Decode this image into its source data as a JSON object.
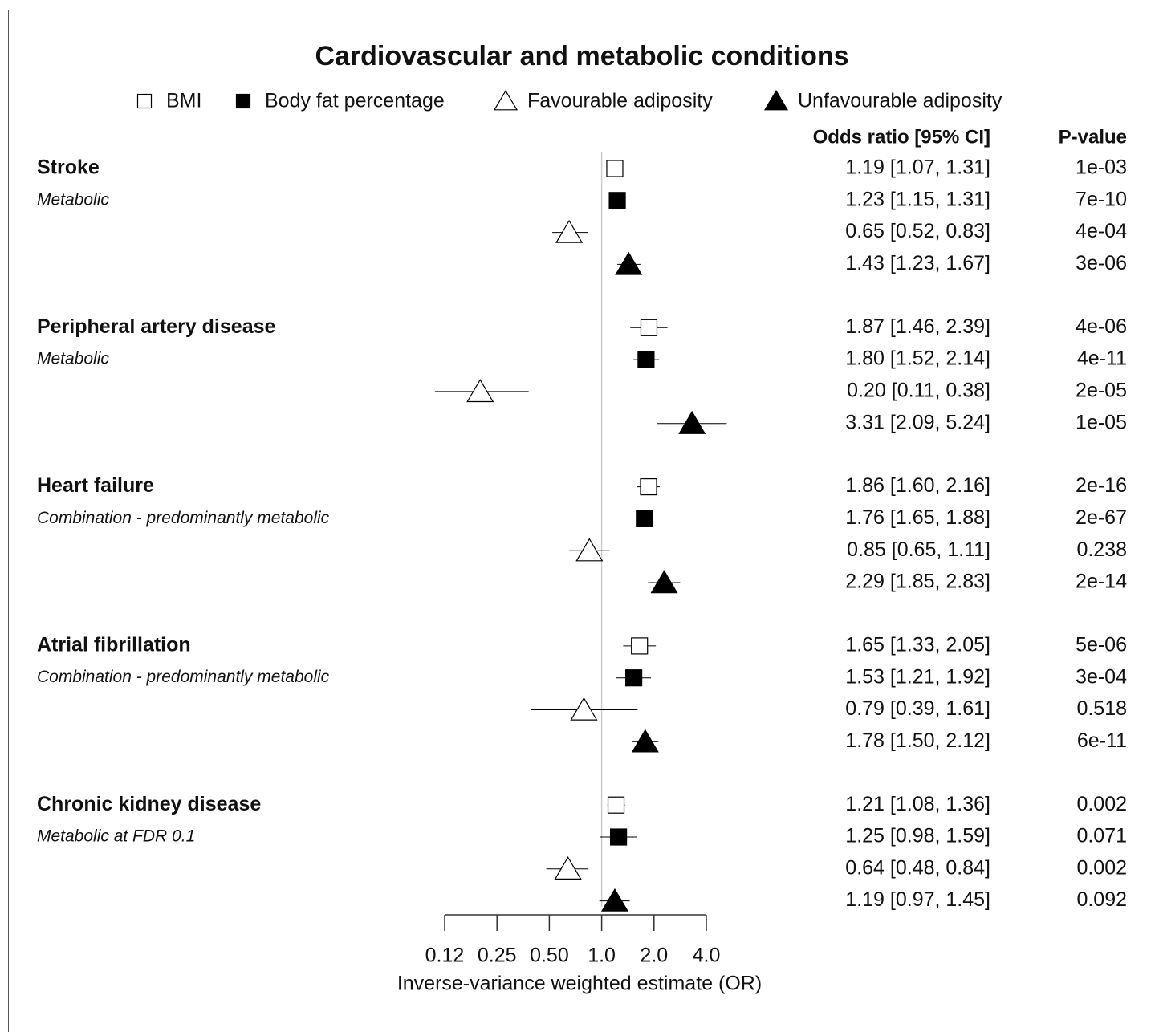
{
  "chart_data": {
    "type": "forest",
    "title": "Cardiovascular and metabolic conditions",
    "series": [
      {
        "name": "BMI",
        "marker": "square",
        "filled": false
      },
      {
        "name": "Body fat percentage",
        "marker": "square",
        "filled": true
      },
      {
        "name": "Favourable adiposity",
        "marker": "triangle",
        "filled": false
      },
      {
        "name": "Unfavourable adiposity",
        "marker": "triangle",
        "filled": true
      }
    ],
    "columns": [
      "Odds ratio [95% CI]",
      "P-value"
    ],
    "groups": [
      {
        "name": "Stroke",
        "subtitle": "Metabolic",
        "values": [
          1.19,
          1.23,
          0.65,
          1.43
        ],
        "lower": [
          1.07,
          1.15,
          0.52,
          1.23
        ],
        "upper": [
          1.31,
          1.31,
          0.83,
          1.67
        ],
        "value_labels": [
          "1.19 [1.07, 1.31]",
          "1.23 [1.15, 1.31]",
          "0.65 [0.52, 0.83]",
          "1.43 [1.23, 1.67]"
        ],
        "p_values": [
          "1e-03",
          "7e-10",
          "4e-04",
          "3e-06"
        ]
      },
      {
        "name": "Peripheral artery disease",
        "subtitle": "Metabolic",
        "values": [
          1.87,
          1.8,
          0.2,
          3.31
        ],
        "lower": [
          1.46,
          1.52,
          0.11,
          2.09
        ],
        "upper": [
          2.39,
          2.14,
          0.38,
          5.24
        ],
        "value_labels": [
          "1.87 [1.46, 2.39]",
          "1.80 [1.52, 2.14]",
          "0.20 [0.11, 0.38]",
          "3.31 [2.09, 5.24]"
        ],
        "p_values": [
          "4e-06",
          "4e-11",
          "2e-05",
          "1e-05"
        ]
      },
      {
        "name": "Heart failure",
        "subtitle": "Combination - predominantly metabolic",
        "values": [
          1.86,
          1.76,
          0.85,
          2.29
        ],
        "lower": [
          1.6,
          1.65,
          0.65,
          1.85
        ],
        "upper": [
          2.16,
          1.88,
          1.11,
          2.83
        ],
        "value_labels": [
          "1.86 [1.60, 2.16]",
          "1.76 [1.65, 1.88]",
          "0.85 [0.65, 1.11]",
          "2.29 [1.85, 2.83]"
        ],
        "p_values": [
          "2e-16",
          "2e-67",
          "0.238",
          "2e-14"
        ]
      },
      {
        "name": "Atrial fibrillation",
        "subtitle": "Combination - predominantly metabolic",
        "values": [
          1.65,
          1.53,
          0.79,
          1.78
        ],
        "lower": [
          1.33,
          1.21,
          0.39,
          1.5
        ],
        "upper": [
          2.05,
          1.92,
          1.61,
          2.12
        ],
        "value_labels": [
          "1.65 [1.33, 2.05]",
          "1.53 [1.21, 1.92]",
          "0.79 [0.39, 1.61]",
          "1.78 [1.50, 2.12]"
        ],
        "p_values": [
          "5e-06",
          "3e-04",
          "0.518",
          "6e-11"
        ]
      },
      {
        "name": "Chronic kidney disease",
        "subtitle": "Metabolic at FDR 0.1",
        "values": [
          1.21,
          1.25,
          0.64,
          1.19
        ],
        "lower": [
          1.08,
          0.98,
          0.48,
          0.97
        ],
        "upper": [
          1.36,
          1.59,
          0.84,
          1.45
        ],
        "value_labels": [
          "1.21 [1.08, 1.36]",
          "1.25 [0.98, 1.59]",
          "0.64 [0.48, 0.84]",
          "1.19 [0.97, 1.45]"
        ],
        "p_values": [
          "0.002",
          "0.071",
          "0.002",
          "0.092"
        ]
      }
    ],
    "x_label": "Inverse-variance weighted estimate (OR)",
    "x_log_scale": true,
    "xlim": [
      0.125,
      4
    ],
    "xticks": [
      {
        "value": 0.125,
        "label": "0.12"
      },
      0.25,
      {
        "value": 0.5,
        "label": "0.50"
      },
      {
        "value": 1,
        "label": "1.0"
      },
      {
        "value": 2,
        "label": "2.0"
      },
      {
        "value": 4,
        "label": "4.0"
      }
    ],
    "reference_line": 1
  }
}
